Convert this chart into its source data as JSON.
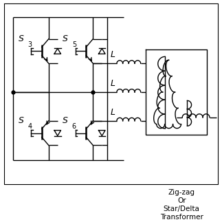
{
  "bg_color": "#ffffff",
  "line_color": "#000000",
  "figsize": [
    3.23,
    3.23
  ],
  "dpi": 100,
  "zigzag_text_line1": "Zig-zag",
  "zigzag_text_line2": "Or",
  "zigzag_text_line3": "Star/Delta",
  "zigzag_text_line4": "Transformer"
}
